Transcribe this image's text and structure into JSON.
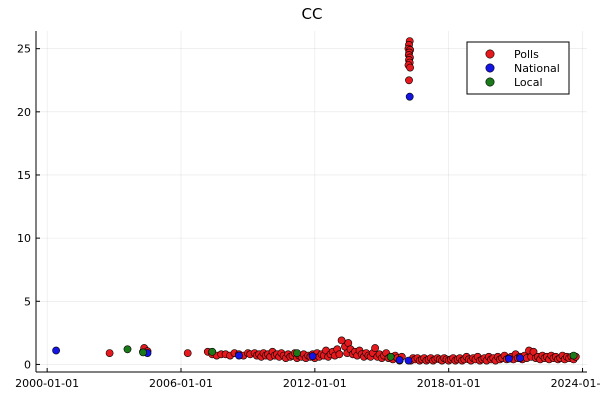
{
  "chart_data": {
    "type": "scatter",
    "title": "CC",
    "xlabel": "",
    "ylabel": "",
    "xlim": [
      1999.5,
      2024.2
    ],
    "ylim": [
      -0.6,
      26.4
    ],
    "grid": true,
    "legend_position": "top-right",
    "x_ticks": [
      {
        "value": 2000,
        "label": "2000-01-01"
      },
      {
        "value": 2006,
        "label": "2006-01-01"
      },
      {
        "value": 2012,
        "label": "2012-01-01"
      },
      {
        "value": 2018,
        "label": "2018-01-01"
      },
      {
        "value": 2024,
        "label": "2024-01-01"
      }
    ],
    "y_ticks": [
      {
        "value": 0,
        "label": "0"
      },
      {
        "value": 5,
        "label": "5"
      },
      {
        "value": 10,
        "label": "10"
      },
      {
        "value": 15,
        "label": "15"
      },
      {
        "value": 20,
        "label": "20"
      },
      {
        "value": 25,
        "label": "25"
      }
    ],
    "series": [
      {
        "name": "Polls",
        "color": "#e6191e",
        "points": [
          [
            2002.8,
            0.9
          ],
          [
            2004.3,
            1.0
          ],
          [
            2004.35,
            1.3
          ],
          [
            2004.5,
            1.05
          ],
          [
            2006.3,
            0.9
          ],
          [
            2007.2,
            1.0
          ],
          [
            2007.4,
            0.8
          ],
          [
            2007.6,
            0.7
          ],
          [
            2007.8,
            0.8
          ],
          [
            2008.0,
            0.8
          ],
          [
            2008.2,
            0.7
          ],
          [
            2008.4,
            0.9
          ],
          [
            2008.6,
            0.8
          ],
          [
            2008.8,
            0.7
          ],
          [
            2009.0,
            0.9
          ],
          [
            2009.1,
            0.8
          ],
          [
            2009.3,
            0.9
          ],
          [
            2009.4,
            0.7
          ],
          [
            2009.5,
            0.8
          ],
          [
            2009.6,
            0.6
          ],
          [
            2009.7,
            0.9
          ],
          [
            2009.8,
            0.7
          ],
          [
            2009.9,
            0.8
          ],
          [
            2010.0,
            0.6
          ],
          [
            2010.1,
            1.0
          ],
          [
            2010.2,
            0.7
          ],
          [
            2010.3,
            0.8
          ],
          [
            2010.4,
            0.6
          ],
          [
            2010.5,
            0.9
          ],
          [
            2010.6,
            0.7
          ],
          [
            2010.7,
            0.5
          ],
          [
            2010.8,
            0.8
          ],
          [
            2010.9,
            0.6
          ],
          [
            2011.0,
            0.7
          ],
          [
            2011.1,
            0.9
          ],
          [
            2011.2,
            0.5
          ],
          [
            2011.3,
            0.7
          ],
          [
            2011.4,
            0.6
          ],
          [
            2011.5,
            0.8
          ],
          [
            2011.6,
            0.5
          ],
          [
            2011.7,
            0.7
          ],
          [
            2011.8,
            0.6
          ],
          [
            2011.9,
            0.8
          ],
          [
            2012.0,
            0.5
          ],
          [
            2012.1,
            0.9
          ],
          [
            2012.2,
            0.6
          ],
          [
            2012.3,
            0.8
          ],
          [
            2012.4,
            0.7
          ],
          [
            2012.5,
            1.1
          ],
          [
            2012.6,
            0.6
          ],
          [
            2012.7,
            0.8
          ],
          [
            2012.8,
            1.0
          ],
          [
            2012.9,
            0.7
          ],
          [
            2013.0,
            1.2
          ],
          [
            2013.1,
            0.8
          ],
          [
            2013.2,
            1.9
          ],
          [
            2013.35,
            1.4
          ],
          [
            2013.45,
            0.9
          ],
          [
            2013.5,
            1.7
          ],
          [
            2013.6,
            1.2
          ],
          [
            2013.7,
            0.8
          ],
          [
            2013.8,
            1.0
          ],
          [
            2013.9,
            0.7
          ],
          [
            2014.0,
            1.1
          ],
          [
            2014.1,
            0.8
          ],
          [
            2014.2,
            0.6
          ],
          [
            2014.3,
            0.9
          ],
          [
            2014.4,
            0.7
          ],
          [
            2014.5,
            0.6
          ],
          [
            2014.6,
            0.9
          ],
          [
            2014.7,
            1.3
          ],
          [
            2014.8,
            0.6
          ],
          [
            2014.9,
            0.8
          ],
          [
            2015.0,
            0.5
          ],
          [
            2015.1,
            0.7
          ],
          [
            2015.2,
            0.9
          ],
          [
            2015.3,
            0.5
          ],
          [
            2015.4,
            0.6
          ],
          [
            2015.5,
            0.4
          ],
          [
            2015.6,
            0.7
          ],
          [
            2015.7,
            0.5
          ],
          [
            2015.8,
            0.3
          ],
          [
            2015.9,
            0.6
          ],
          [
            2016.25,
            25.6
          ],
          [
            2016.22,
            25.3
          ],
          [
            2016.2,
            25.0
          ],
          [
            2016.27,
            24.9
          ],
          [
            2016.23,
            24.7
          ],
          [
            2016.21,
            24.5
          ],
          [
            2016.26,
            24.3
          ],
          [
            2016.22,
            24.1
          ],
          [
            2016.25,
            23.9
          ],
          [
            2016.2,
            23.7
          ],
          [
            2016.27,
            23.5
          ],
          [
            2016.22,
            22.5
          ],
          [
            2016.3,
            0.3
          ],
          [
            2016.4,
            0.5
          ],
          [
            2016.5,
            0.4
          ],
          [
            2016.6,
            0.5
          ],
          [
            2016.7,
            0.3
          ],
          [
            2016.8,
            0.4
          ],
          [
            2016.9,
            0.5
          ],
          [
            2017.0,
            0.3
          ],
          [
            2017.1,
            0.4
          ],
          [
            2017.2,
            0.5
          ],
          [
            2017.3,
            0.3
          ],
          [
            2017.4,
            0.4
          ],
          [
            2017.5,
            0.5
          ],
          [
            2017.6,
            0.4
          ],
          [
            2017.7,
            0.3
          ],
          [
            2017.8,
            0.5
          ],
          [
            2017.9,
            0.4
          ],
          [
            2018.0,
            0.3
          ],
          [
            2018.1,
            0.4
          ],
          [
            2018.2,
            0.5
          ],
          [
            2018.3,
            0.3
          ],
          [
            2018.4,
            0.4
          ],
          [
            2018.5,
            0.5
          ],
          [
            2018.6,
            0.3
          ],
          [
            2018.7,
            0.4
          ],
          [
            2018.8,
            0.6
          ],
          [
            2018.9,
            0.4
          ],
          [
            2019.0,
            0.3
          ],
          [
            2019.1,
            0.5
          ],
          [
            2019.2,
            0.4
          ],
          [
            2019.3,
            0.6
          ],
          [
            2019.4,
            0.3
          ],
          [
            2019.5,
            0.4
          ],
          [
            2019.6,
            0.5
          ],
          [
            2019.7,
            0.3
          ],
          [
            2019.8,
            0.6
          ],
          [
            2019.9,
            0.4
          ],
          [
            2020.0,
            0.5
          ],
          [
            2020.1,
            0.3
          ],
          [
            2020.2,
            0.6
          ],
          [
            2020.3,
            0.4
          ],
          [
            2020.4,
            0.5
          ],
          [
            2020.5,
            0.7
          ],
          [
            2020.6,
            0.4
          ],
          [
            2020.7,
            0.5
          ],
          [
            2020.8,
            0.6
          ],
          [
            2020.9,
            0.4
          ],
          [
            2021.0,
            0.8
          ],
          [
            2021.1,
            0.5
          ],
          [
            2021.2,
            0.6
          ],
          [
            2021.3,
            0.4
          ],
          [
            2021.4,
            0.7
          ],
          [
            2021.5,
            0.5
          ],
          [
            2021.6,
            1.1
          ],
          [
            2021.7,
            0.6
          ],
          [
            2021.8,
            1.0
          ],
          [
            2021.9,
            0.5
          ],
          [
            2022.0,
            0.6
          ],
          [
            2022.1,
            0.4
          ],
          [
            2022.2,
            0.7
          ],
          [
            2022.3,
            0.5
          ],
          [
            2022.4,
            0.6
          ],
          [
            2022.5,
            0.4
          ],
          [
            2022.6,
            0.7
          ],
          [
            2022.7,
            0.5
          ],
          [
            2022.8,
            0.6
          ],
          [
            2022.9,
            0.4
          ],
          [
            2023.0,
            0.5
          ],
          [
            2023.1,
            0.7
          ],
          [
            2023.2,
            0.4
          ],
          [
            2023.3,
            0.6
          ],
          [
            2023.4,
            0.5
          ],
          [
            2023.5,
            0.6
          ],
          [
            2023.6,
            0.4
          ],
          [
            2023.7,
            0.6
          ]
        ]
      },
      {
        "name": "National",
        "color": "#1414e6",
        "points": [
          [
            2000.4,
            1.1
          ],
          [
            2004.5,
            0.9
          ],
          [
            2008.6,
            0.7
          ],
          [
            2011.9,
            0.65
          ],
          [
            2015.8,
            0.35
          ],
          [
            2016.2,
            0.3
          ],
          [
            2016.25,
            21.2
          ],
          [
            2020.7,
            0.45
          ],
          [
            2021.2,
            0.5
          ]
        ]
      },
      {
        "name": "Local",
        "color": "#1a7a1a",
        "points": [
          [
            2003.6,
            1.2
          ],
          [
            2004.3,
            0.95
          ],
          [
            2007.4,
            1.0
          ],
          [
            2011.2,
            0.9
          ],
          [
            2015.4,
            0.6
          ],
          [
            2023.6,
            0.7
          ]
        ]
      }
    ]
  }
}
